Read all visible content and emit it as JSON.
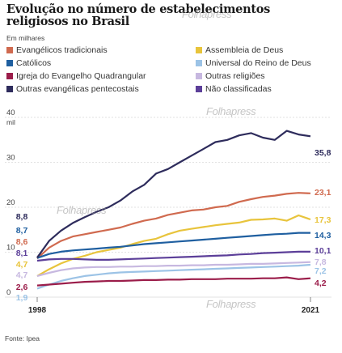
{
  "chart_data": {
    "type": "line",
    "title": "Evolução no número de estabelecimentos religiosos no Brasil",
    "subtitle": "Em milhares",
    "ylim": [
      0,
      40
    ],
    "yticks": [
      "0",
      "10",
      "20",
      "30",
      "40"
    ],
    "ytick_suffix": "mil",
    "xlim": [
      1998,
      2021
    ],
    "xtick_labels": [
      "1998",
      "2021"
    ],
    "source": "Fonte: Ipea",
    "series": [
      {
        "name": "Evangélicos tradicionais",
        "color": "#d06a4f",
        "start_label": "8,6",
        "end_label": "23,1",
        "x": [
          1998,
          1999,
          2000,
          2001,
          2002,
          2003,
          2004,
          2005,
          2006,
          2007,
          2008,
          2009,
          2010,
          2011,
          2012,
          2013,
          2014,
          2015,
          2016,
          2017,
          2018,
          2019,
          2020,
          2021
        ],
        "values": [
          8.6,
          11.0,
          12.5,
          13.5,
          14.0,
          14.5,
          15.0,
          15.5,
          16.3,
          17.0,
          17.5,
          18.3,
          18.8,
          19.3,
          19.5,
          20.0,
          20.3,
          21.2,
          21.8,
          22.3,
          22.6,
          23.0,
          23.2,
          23.1
        ]
      },
      {
        "name": "Assembleia de Deus",
        "color": "#e8c43c",
        "start_label": "4,7",
        "end_label": "17,3",
        "x": [
          1998,
          1999,
          2000,
          2001,
          2002,
          2003,
          2004,
          2005,
          2006,
          2007,
          2008,
          2009,
          2010,
          2011,
          2012,
          2013,
          2014,
          2015,
          2016,
          2017,
          2018,
          2019,
          2020,
          2021
        ],
        "values": [
          4.7,
          6.2,
          7.5,
          8.5,
          9.2,
          10.0,
          10.5,
          11.0,
          11.8,
          12.5,
          13.0,
          14.0,
          14.8,
          15.2,
          15.6,
          16.0,
          16.3,
          16.6,
          17.2,
          17.3,
          17.5,
          17.0,
          18.2,
          17.3
        ]
      },
      {
        "name": "Católicos",
        "color": "#1f5fa0",
        "start_label": "8,7",
        "end_label": "14,3",
        "x": [
          1998,
          1999,
          2000,
          2001,
          2002,
          2003,
          2004,
          2005,
          2006,
          2007,
          2008,
          2009,
          2010,
          2011,
          2012,
          2013,
          2014,
          2015,
          2016,
          2017,
          2018,
          2019,
          2020,
          2021
        ],
        "values": [
          8.7,
          9.6,
          10.1,
          10.4,
          10.6,
          10.8,
          11.0,
          11.2,
          11.5,
          11.8,
          12.0,
          12.2,
          12.4,
          12.6,
          12.8,
          13.0,
          13.2,
          13.4,
          13.6,
          13.8,
          14.0,
          14.1,
          14.3,
          14.3
        ]
      },
      {
        "name": "Universal do Reino de Deus",
        "color": "#9cc3e6",
        "start_label": "1,9",
        "end_label": "7,2",
        "x": [
          1998,
          1999,
          2000,
          2001,
          2002,
          2003,
          2004,
          2005,
          2006,
          2007,
          2008,
          2009,
          2010,
          2011,
          2012,
          2013,
          2014,
          2015,
          2016,
          2017,
          2018,
          2019,
          2020,
          2021
        ],
        "values": [
          1.9,
          2.8,
          3.6,
          4.2,
          4.7,
          5.0,
          5.3,
          5.5,
          5.6,
          5.7,
          5.8,
          5.9,
          6.0,
          6.1,
          6.2,
          6.3,
          6.4,
          6.5,
          6.6,
          6.7,
          6.8,
          6.9,
          7.0,
          7.2
        ]
      },
      {
        "name": "Igreja do Evangelho Quadrangular",
        "color": "#9b1d4a",
        "start_label": "2,6",
        "end_label": "4,2",
        "x": [
          1998,
          1999,
          2000,
          2001,
          2002,
          2003,
          2004,
          2005,
          2006,
          2007,
          2008,
          2009,
          2010,
          2011,
          2012,
          2013,
          2014,
          2015,
          2016,
          2017,
          2018,
          2019,
          2020,
          2021
        ],
        "values": [
          2.6,
          2.8,
          3.0,
          3.2,
          3.4,
          3.5,
          3.6,
          3.6,
          3.7,
          3.8,
          3.8,
          3.9,
          3.9,
          4.0,
          4.0,
          4.0,
          4.1,
          4.1,
          4.1,
          4.2,
          4.2,
          4.4,
          4.0,
          4.2
        ]
      },
      {
        "name": "Outras religiões",
        "color": "#c7b8e0",
        "start_label": "4,7",
        "end_label": "7,8",
        "x": [
          1998,
          1999,
          2000,
          2001,
          2002,
          2003,
          2004,
          2005,
          2006,
          2007,
          2008,
          2009,
          2010,
          2011,
          2012,
          2013,
          2014,
          2015,
          2016,
          2017,
          2018,
          2019,
          2020,
          2021
        ],
        "values": [
          4.7,
          5.4,
          6.0,
          6.4,
          6.6,
          6.7,
          6.7,
          6.8,
          6.8,
          6.9,
          6.9,
          7.0,
          7.0,
          7.1,
          7.1,
          7.2,
          7.2,
          7.3,
          7.4,
          7.4,
          7.5,
          7.6,
          7.7,
          7.8
        ]
      },
      {
        "name": "Outras evangélicas pentecostais",
        "color": "#2e2c5c",
        "start_label": "8,8",
        "end_label": "35,8",
        "x": [
          1998,
          1999,
          2000,
          2001,
          2002,
          2003,
          2004,
          2005,
          2006,
          2007,
          2008,
          2009,
          2010,
          2011,
          2012,
          2013,
          2014,
          2015,
          2016,
          2017,
          2018,
          2019,
          2020,
          2021
        ],
        "values": [
          8.8,
          12.5,
          14.8,
          16.5,
          17.8,
          19.0,
          20.0,
          21.5,
          23.5,
          25.0,
          27.5,
          28.5,
          30.0,
          31.5,
          33.0,
          34.5,
          35.0,
          36.0,
          36.5,
          35.5,
          35.0,
          37.0,
          36.2,
          35.8
        ]
      },
      {
        "name": "Não classificadas",
        "color": "#5c3f99",
        "start_label": "8,1",
        "end_label": "10,1",
        "x": [
          1998,
          1999,
          2000,
          2001,
          2002,
          2003,
          2004,
          2005,
          2006,
          2007,
          2008,
          2009,
          2010,
          2011,
          2012,
          2013,
          2014,
          2015,
          2016,
          2017,
          2018,
          2019,
          2020,
          2021
        ],
        "values": [
          8.1,
          8.4,
          8.5,
          8.5,
          8.4,
          8.3,
          8.3,
          8.4,
          8.5,
          8.6,
          8.7,
          8.8,
          8.9,
          9.0,
          9.1,
          9.2,
          9.3,
          9.5,
          9.6,
          9.8,
          9.9,
          10.0,
          10.1,
          10.1
        ]
      }
    ]
  },
  "watermark": "Folhapress"
}
